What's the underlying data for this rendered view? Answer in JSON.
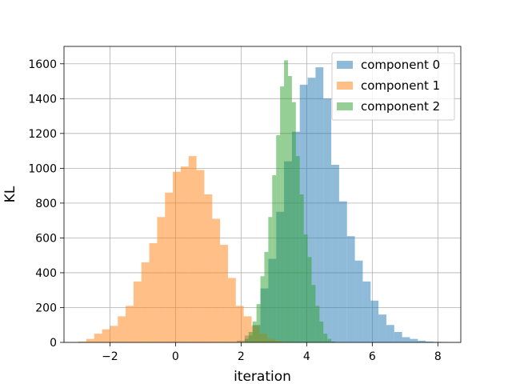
{
  "chart_data": {
    "type": "histogram",
    "title": "",
    "xlabel": "iteration",
    "ylabel": "KL",
    "xlim": [
      -3.4,
      8.7
    ],
    "ylim": [
      0,
      1700
    ],
    "xticks": [
      -2,
      0,
      2,
      4,
      6,
      8
    ],
    "yticks": [
      0,
      200,
      400,
      600,
      800,
      1000,
      1200,
      1400,
      1600
    ],
    "grid": true,
    "legend_position": "top-right",
    "bin_width": 0.24,
    "series": [
      {
        "name": "component 0",
        "color": "#1f77b4",
        "opacity": 0.5,
        "bin_start": 1.87,
        "counts": [
          10,
          40,
          100,
          310,
          480,
          750,
          1040,
          1210,
          1480,
          1520,
          1580,
          1400,
          1020,
          810,
          610,
          470,
          350,
          240,
          160,
          100,
          60,
          30,
          20,
          10,
          5,
          3,
          2
        ]
      },
      {
        "name": "component 1",
        "color": "#ff7f0e",
        "opacity": 0.5,
        "bin_start": -2.96,
        "counts": [
          5,
          20,
          50,
          75,
          95,
          150,
          210,
          350,
          460,
          570,
          720,
          860,
          980,
          1010,
          1070,
          990,
          850,
          710,
          560,
          370,
          210,
          150,
          95,
          50,
          20,
          8,
          3
        ]
      },
      {
        "name": "component 2",
        "color": "#2ca02c",
        "opacity": 0.5,
        "bin_start": 2.11,
        "bin_width": 0.12,
        "counts": [
          20,
          60,
          120,
          220,
          380,
          520,
          720,
          960,
          1190,
          1470,
          1620,
          1530,
          1380,
          1070,
          850,
          620,
          490,
          330,
          210,
          120,
          50,
          20,
          5
        ]
      }
    ]
  }
}
